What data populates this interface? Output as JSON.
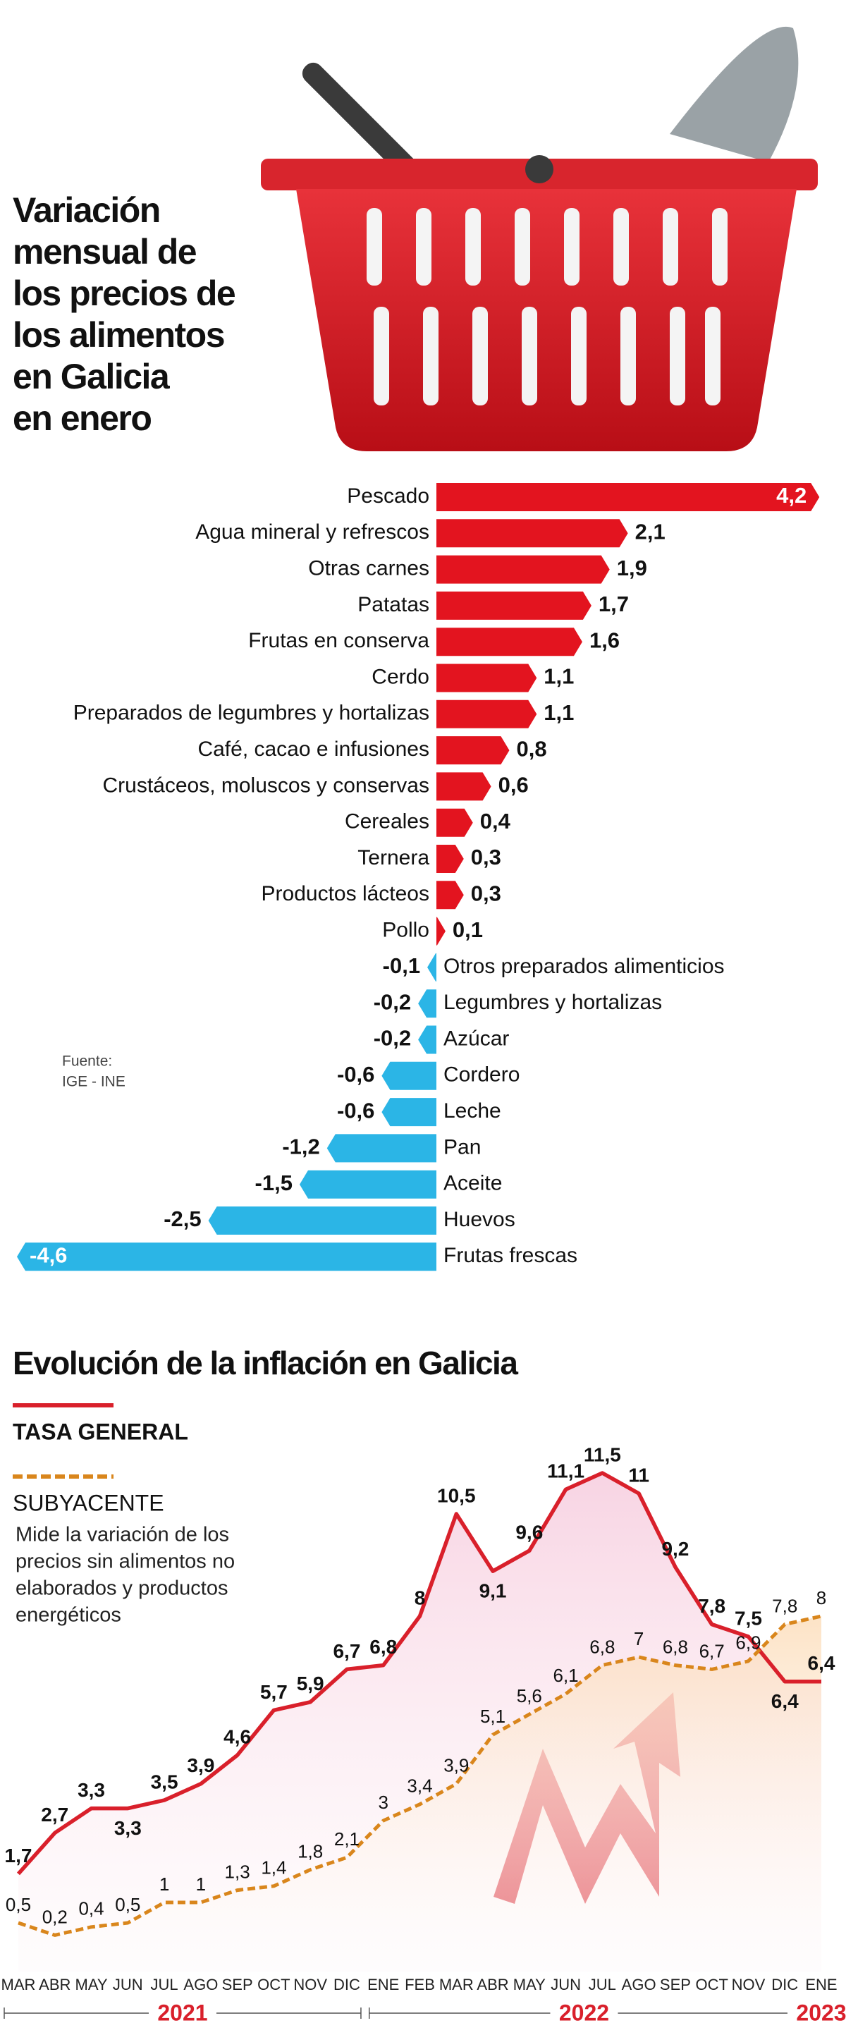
{
  "chart_data": [
    {
      "type": "bar",
      "title": [
        "Variación",
        "mensual de",
        "los precios de",
        "los alimentos",
        "en Galicia",
        "en enero"
      ],
      "source": [
        "Fuente:",
        "IGE - INE"
      ],
      "categories": [
        "Pescado",
        "Agua mineral y refrescos",
        "Otras carnes",
        "Patatas",
        "Frutas en conserva",
        "Cerdo",
        "Preparados de legumbres y hortalizas",
        "Café, cacao e infusiones",
        "Crustáceos, moluscos y conservas",
        "Cereales",
        "Ternera",
        "Productos lácteos",
        "Pollo",
        "Otros preparados alimenticios",
        "Legumbres y hortalizas",
        "Azúcar",
        "Cordero",
        "Leche",
        "Pan",
        "Aceite",
        "Huevos",
        "Frutas frescas"
      ],
      "values": [
        4.2,
        2.1,
        1.9,
        1.7,
        1.6,
        1.1,
        1.1,
        0.8,
        0.6,
        0.4,
        0.3,
        0.3,
        0.1,
        -0.1,
        -0.2,
        -0.2,
        -0.6,
        -0.6,
        -1.2,
        -1.5,
        -2.5,
        -4.6
      ],
      "value_labels": [
        "4,2",
        "2,1",
        "1,9",
        "1,7",
        "1,6",
        "1,1",
        "1,1",
        "0,8",
        "0,6",
        "0,4",
        "0,3",
        "0,3",
        "0,1",
        "-0,1",
        "-0,2",
        "-0,2",
        "-0,6",
        "-0,6",
        "-1,2",
        "-1,5",
        "-2,5",
        "-4,6"
      ],
      "colors": {
        "positive": "#e3141f",
        "negative": "#2bb5e6"
      }
    },
    {
      "type": "line",
      "title": "Evolución de la inflación en Galicia",
      "categories": [
        "MAR",
        "ABR",
        "MAY",
        "JUN",
        "JUL",
        "AGO",
        "SEP",
        "OCT",
        "NOV",
        "DIC",
        "ENE",
        "FEB",
        "MAR",
        "ABR",
        "MAY",
        "JUN",
        "JUL",
        "AGO",
        "SEP",
        "OCT",
        "NOV",
        "DIC",
        "ENE"
      ],
      "years": [
        {
          "label": "2021",
          "months": 10
        },
        {
          "label": "2022",
          "months": 12
        },
        {
          "label": "2023",
          "months": 1
        }
      ],
      "series": [
        {
          "name": "TASA GENERAL",
          "color": "#d9202b",
          "values": [
            1.7,
            2.7,
            3.3,
            3.3,
            3.5,
            3.9,
            4.6,
            5.7,
            5.9,
            6.7,
            6.8,
            8,
            10.5,
            9.1,
            9.6,
            11.1,
            11.5,
            11,
            9.2,
            7.8,
            7.5,
            6.4,
            6.4
          ],
          "value_labels": [
            "1,7",
            "2,7",
            "3,3",
            "3,3",
            "3,5",
            "3,9",
            "4,6",
            "5,7",
            "5,9",
            "6,7",
            "6,8",
            "8",
            "10,5",
            "9,1",
            "9,6",
            "11,1",
            "11,5",
            "11",
            "9,2",
            "7,8",
            "7,5",
            "6,4",
            "6,4"
          ]
        },
        {
          "name": "SUBYACENTE",
          "color": "#d9861c",
          "dashed": true,
          "description": [
            "Mide la variación de los",
            "precios sin alimentos no",
            "elaborados y productos",
            "energéticos"
          ],
          "values": [
            0.5,
            0.2,
            0.4,
            0.5,
            1,
            1,
            1.3,
            1.4,
            1.8,
            2.1,
            3,
            3.4,
            3.9,
            5.1,
            5.6,
            6.1,
            6.8,
            7,
            6.8,
            6.7,
            6.9,
            7.8,
            8
          ],
          "value_labels": [
            "0,5",
            "0,2",
            "0,4",
            "0,5",
            "1",
            "1",
            "1,3",
            "1,4",
            "1,8",
            "2,1",
            "3",
            "3,4",
            "3,9",
            "5,1",
            "5,6",
            "6,1",
            "6,8",
            "7",
            "6,8",
            "6,7",
            "6,9",
            "7,8",
            "8"
          ]
        }
      ]
    }
  ]
}
